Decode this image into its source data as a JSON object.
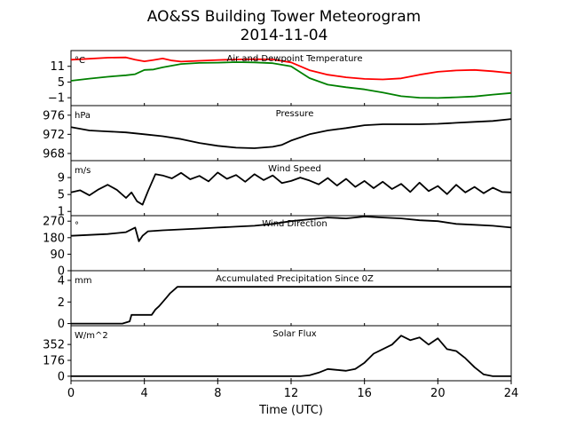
{
  "figure": {
    "title_line1": "AO&SS Building Tower Meteorogram",
    "title_line2": "2014-11-04",
    "xlabel": "Time (UTC)",
    "x_ticks": [
      0,
      4,
      8,
      12,
      16,
      20,
      24
    ],
    "x_range": [
      0,
      24
    ]
  },
  "chart_data": [
    {
      "type": "line",
      "title": "Air and Dewpoint Temperature",
      "unit": "°C",
      "ylim": [
        -4,
        17
      ],
      "y_ticks": [
        -1,
        5,
        11
      ],
      "series": [
        {
          "color": "#ff0000",
          "x": [
            0,
            1,
            2,
            3,
            3.5,
            4,
            4.5,
            5,
            5.5,
            6,
            7,
            8,
            9,
            10,
            11,
            12,
            13,
            14,
            15,
            16,
            17,
            18,
            19,
            20,
            21,
            22,
            23,
            24
          ],
          "y": [
            13.5,
            13.9,
            14.3,
            14.4,
            13.5,
            12.9,
            13.4,
            14,
            13.2,
            12.8,
            13.1,
            13.4,
            13.6,
            13.7,
            13.6,
            12.5,
            9.5,
            7.8,
            6.8,
            6.2,
            6,
            6.4,
            7.8,
            8.9,
            9.4,
            9.6,
            9.1,
            8.4
          ]
        },
        {
          "color": "#008000",
          "x": [
            0,
            1,
            2,
            3,
            3.5,
            4,
            4.5,
            5,
            6,
            7,
            8,
            9,
            10,
            11,
            12,
            13,
            14,
            15,
            16,
            17,
            18,
            19,
            20,
            21,
            22,
            23,
            24
          ],
          "y": [
            5.5,
            6.3,
            7,
            7.6,
            8,
            9.6,
            9.8,
            10.6,
            11.9,
            12.3,
            12.4,
            12.6,
            12.5,
            12.2,
            11,
            6.5,
            4,
            3,
            2.2,
            1,
            -0.4,
            -1,
            -1.1,
            -0.8,
            -0.5,
            0.2,
            0.8
          ]
        }
      ]
    },
    {
      "type": "line",
      "title": "Pressure",
      "unit": "hPa",
      "ylim": [
        966.5,
        978
      ],
      "y_ticks": [
        968,
        972,
        976
      ],
      "series": [
        {
          "color": "#000000",
          "x": [
            0,
            1,
            2,
            3,
            4,
            5,
            6,
            7,
            8,
            9,
            10,
            11,
            11.5,
            12,
            13,
            14,
            15,
            16,
            17,
            18,
            19,
            20,
            21,
            22,
            23,
            24
          ],
          "y": [
            973.5,
            972.8,
            972.6,
            972.4,
            972,
            971.6,
            971,
            970.2,
            969.6,
            969.2,
            969.1,
            969.4,
            969.8,
            970.7,
            972,
            972.8,
            973.3,
            973.9,
            974.1,
            974.1,
            974.1,
            974.2,
            974.4,
            974.6,
            974.8,
            975.2
          ]
        }
      ]
    },
    {
      "type": "line",
      "title": "Wind Speed",
      "unit": "m/s",
      "ylim": [
        0,
        13
      ],
      "y_ticks": [
        1,
        5,
        9
      ],
      "series": [
        {
          "color": "#000000",
          "x": [
            0,
            0.5,
            1,
            1.5,
            2,
            2.5,
            3,
            3.3,
            3.6,
            3.9,
            4.2,
            4.6,
            5,
            5.5,
            6,
            6.5,
            7,
            7.5,
            8,
            8.5,
            9,
            9.5,
            10,
            10.5,
            11,
            11.5,
            12,
            12.5,
            13,
            13.5,
            14,
            14.5,
            15,
            15.5,
            16,
            16.5,
            17,
            17.5,
            18,
            18.5,
            19,
            19.5,
            20,
            20.5,
            21,
            21.5,
            22,
            22.5,
            23,
            23.5,
            24
          ],
          "y": [
            5.5,
            6,
            4.8,
            6.2,
            7.3,
            6.1,
            4.2,
            5.5,
            3.4,
            2.6,
            5.8,
            9.8,
            9.5,
            8.8,
            10.1,
            8.6,
            9.4,
            8.1,
            10.2,
            8.7,
            9.6,
            8,
            9.8,
            8.4,
            9.5,
            7.7,
            8.2,
            9,
            8.3,
            7.4,
            8.9,
            7.1,
            8.7,
            6.8,
            8.2,
            6.5,
            8,
            6.3,
            7.5,
            5.6,
            7.8,
            5.8,
            7,
            5.1,
            7.3,
            5.5,
            6.8,
            5.3,
            6.6,
            5.6,
            5.5
          ]
        }
      ]
    },
    {
      "type": "line",
      "title": "Wind Direction",
      "unit": "°",
      "ylim": [
        0,
        300
      ],
      "y_ticks": [
        0,
        90,
        180,
        270
      ],
      "series": [
        {
          "color": "#000000",
          "x": [
            0,
            1,
            2,
            3,
            3.5,
            3.7,
            3.9,
            4.2,
            5,
            6,
            7,
            8,
            9,
            10,
            11,
            12,
            13,
            14,
            15,
            16,
            17,
            18,
            19,
            20,
            21,
            22,
            23,
            24
          ],
          "y": [
            190,
            195,
            200,
            210,
            235,
            160,
            190,
            215,
            220,
            225,
            230,
            235,
            240,
            245,
            255,
            270,
            280,
            290,
            285,
            295,
            290,
            285,
            275,
            270,
            255,
            250,
            245,
            235
          ]
        }
      ]
    },
    {
      "type": "line",
      "title": "Accumulated Precipitation Since 0Z",
      "unit": "mm",
      "ylim": [
        -0.2,
        4.9
      ],
      "y_ticks": [
        0,
        2,
        4
      ],
      "series": [
        {
          "color": "#000000",
          "x": [
            0,
            2.8,
            3.2,
            3.3,
            4.4,
            4.6,
            4.8,
            5,
            5.2,
            5.4,
            5.6,
            5.8,
            24
          ],
          "y": [
            0,
            0,
            0.2,
            0.8,
            0.8,
            1.3,
            1.6,
            2,
            2.4,
            2.8,
            3.1,
            3.4,
            3.4
          ]
        }
      ]
    },
    {
      "type": "line",
      "title": "Solar Flux",
      "unit": "W/m^2",
      "ylim": [
        -50,
        560
      ],
      "y_ticks": [
        0,
        176,
        352
      ],
      "series": [
        {
          "color": "#000000",
          "x": [
            0,
            12.5,
            13,
            13.5,
            14,
            14.5,
            15,
            15.5,
            16,
            16.5,
            17,
            17.5,
            18,
            18.5,
            19,
            19.5,
            20,
            20.5,
            21,
            21.5,
            22,
            22.5,
            23,
            24
          ],
          "y": [
            0,
            0,
            10,
            40,
            80,
            70,
            60,
            80,
            150,
            250,
            300,
            350,
            450,
            400,
            430,
            350,
            420,
            300,
            280,
            200,
            100,
            20,
            0,
            0
          ]
        }
      ]
    }
  ]
}
